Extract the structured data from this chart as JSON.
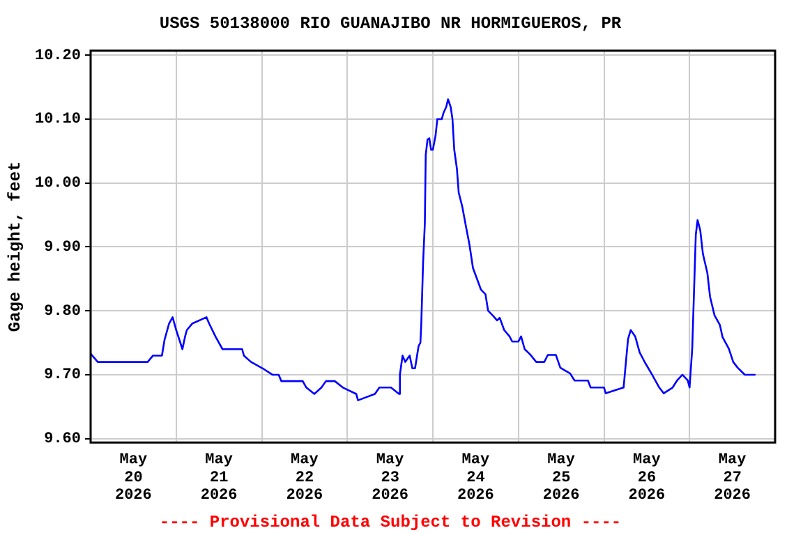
{
  "chart_data": {
    "type": "line",
    "title": "USGS 50138000 RIO GUANAJIBO NR HORMIGUEROS, PR",
    "ylabel": "Gage height, feet",
    "annotations": [
      "---- Provisional Data Subject to Revision ----"
    ],
    "x": [
      "2026-05-20T00:00",
      "2026-05-20T02:00",
      "2026-05-20T16:00",
      "2026-05-20T17:30",
      "2026-05-20T20:00",
      "2026-05-20T20:45",
      "2026-05-20T22:00",
      "2026-05-20T23:00",
      "2026-05-21T00:00",
      "2026-05-21T01:45",
      "2026-05-21T02:30",
      "2026-05-21T03:00",
      "2026-05-21T04:30",
      "2026-05-21T08:30",
      "2026-05-21T09:15",
      "2026-05-21T11:00",
      "2026-05-21T13:00",
      "2026-05-21T18:30",
      "2026-05-21T19:00",
      "2026-05-21T21:00",
      "2026-05-22T00:15",
      "2026-05-22T03:00",
      "2026-05-22T04:45",
      "2026-05-22T05:30",
      "2026-05-22T11:30",
      "2026-05-22T12:30",
      "2026-05-22T14:45",
      "2026-05-22T16:45",
      "2026-05-22T18:00",
      "2026-05-22T20:30",
      "2026-05-22T22:45",
      "2026-05-23T02:30",
      "2026-05-23T03:00",
      "2026-05-23T07:45",
      "2026-05-23T09:00",
      "2026-05-23T12:15",
      "2026-05-23T14:30",
      "2026-05-23T14:45",
      "2026-05-23T15:30",
      "2026-05-23T16:15",
      "2026-05-23T17:30",
      "2026-05-23T18:15",
      "2026-05-23T19:00",
      "2026-05-23T20:00",
      "2026-05-23T20:30",
      "2026-05-23T20:45",
      "2026-05-23T21:15",
      "2026-05-23T21:45",
      "2026-05-23T22:00",
      "2026-05-23T22:30",
      "2026-05-23T23:00",
      "2026-05-23T23:30",
      "2026-05-24T00:00",
      "2026-05-24T00:45",
      "2026-05-24T01:15",
      "2026-05-24T02:30",
      "2026-05-24T03:00",
      "2026-05-24T03:45",
      "2026-05-24T04:15",
      "2026-05-24T05:00",
      "2026-05-24T05:30",
      "2026-05-24T06:00",
      "2026-05-24T06:45",
      "2026-05-24T07:15",
      "2026-05-24T08:15",
      "2026-05-24T09:15",
      "2026-05-24T10:15",
      "2026-05-24T11:15",
      "2026-05-24T12:15",
      "2026-05-24T13:30",
      "2026-05-24T14:45",
      "2026-05-24T15:30",
      "2026-05-24T16:45",
      "2026-05-24T18:00",
      "2026-05-24T18:45",
      "2026-05-24T20:00",
      "2026-05-24T21:30",
      "2026-05-24T22:15",
      "2026-05-25T00:00",
      "2026-05-25T00:45",
      "2026-05-25T01:45",
      "2026-05-25T03:15",
      "2026-05-25T05:00",
      "2026-05-25T07:15",
      "2026-05-25T08:15",
      "2026-05-25T10:30",
      "2026-05-25T11:45",
      "2026-05-25T14:30",
      "2026-05-25T15:45",
      "2026-05-25T19:30",
      "2026-05-25T20:15",
      "2026-05-26T00:00",
      "2026-05-26T00:30",
      "2026-05-26T05:30",
      "2026-05-26T06:15",
      "2026-05-26T06:45",
      "2026-05-26T07:30",
      "2026-05-26T08:45",
      "2026-05-26T10:00",
      "2026-05-26T11:30",
      "2026-05-26T13:30",
      "2026-05-26T15:30",
      "2026-05-26T16:45",
      "2026-05-26T19:15",
      "2026-05-26T20:30",
      "2026-05-26T22:00",
      "2026-05-26T23:30",
      "2026-05-27T00:00",
      "2026-05-27T00:45",
      "2026-05-27T01:30",
      "2026-05-27T01:45",
      "2026-05-27T02:15",
      "2026-05-27T03:00",
      "2026-05-27T03:45",
      "2026-05-27T05:00",
      "2026-05-27T05:45",
      "2026-05-27T07:00",
      "2026-05-27T08:30",
      "2026-05-27T09:15",
      "2026-05-27T11:00",
      "2026-05-27T12:15",
      "2026-05-27T13:30",
      "2026-05-27T15:30",
      "2026-05-27T18:30"
    ],
    "series": [
      {
        "color": "#0000ff",
        "values": [
          9.733,
          9.72,
          9.72,
          9.73,
          9.73,
          9.755,
          9.78,
          9.79,
          9.77,
          9.74,
          9.76,
          9.77,
          9.78,
          9.79,
          9.78,
          9.76,
          9.74,
          9.74,
          9.73,
          9.72,
          9.71,
          9.7,
          9.7,
          9.69,
          9.69,
          9.68,
          9.67,
          9.68,
          9.69,
          9.69,
          9.68,
          9.67,
          9.66,
          9.67,
          9.68,
          9.68,
          9.67,
          9.7,
          9.73,
          9.72,
          9.73,
          9.71,
          9.71,
          9.745,
          9.75,
          9.78,
          9.874,
          9.937,
          10.044,
          10.068,
          10.07,
          10.052,
          10.052,
          10.074,
          10.1,
          10.1,
          10.11,
          10.119,
          10.131,
          10.119,
          10.1,
          10.052,
          10.022,
          9.985,
          9.963,
          9.933,
          9.904,
          9.867,
          9.852,
          9.833,
          9.826,
          9.8,
          9.793,
          9.785,
          9.789,
          9.77,
          9.76,
          9.752,
          9.752,
          9.76,
          9.74,
          9.732,
          9.72,
          9.72,
          9.731,
          9.731,
          9.711,
          9.702,
          9.691,
          9.691,
          9.68,
          9.68,
          9.671,
          9.68,
          9.726,
          9.756,
          9.77,
          9.76,
          9.735,
          9.719,
          9.7,
          9.68,
          9.671,
          9.68,
          9.691,
          9.7,
          9.691,
          9.68,
          9.741,
          9.874,
          9.919,
          9.942,
          9.926,
          9.889,
          9.859,
          9.822,
          9.793,
          9.778,
          9.759,
          9.741,
          9.72,
          9.711,
          9.7,
          9.7
        ]
      }
    ],
    "xlim": [
      "2026-05-20T00:00",
      "2026-05-28T00:00"
    ],
    "xticks": [
      {
        "value": "2026-05-20T00:00",
        "label": null
      },
      {
        "value": "2026-05-20T12:00",
        "label": "May\n20\n2026"
      },
      {
        "value": "2026-05-21T00:00",
        "label": null
      },
      {
        "value": "2026-05-21T12:00",
        "label": "May\n21\n2026"
      },
      {
        "value": "2026-05-22T00:00",
        "label": null
      },
      {
        "value": "2026-05-22T12:00",
        "label": "May\n22\n2026"
      },
      {
        "value": "2026-05-23T00:00",
        "label": null
      },
      {
        "value": "2026-05-23T12:00",
        "label": "May\n23\n2026"
      },
      {
        "value": "2026-05-24T00:00",
        "label": null
      },
      {
        "value": "2026-05-24T12:00",
        "label": "May\n24\n2026"
      },
      {
        "value": "2026-05-25T00:00",
        "label": null
      },
      {
        "value": "2026-05-25T12:00",
        "label": "May\n25\n2026"
      },
      {
        "value": "2026-05-26T00:00",
        "label": null
      },
      {
        "value": "2026-05-26T12:00",
        "label": "May\n26\n2026"
      },
      {
        "value": "2026-05-27T00:00",
        "label": null
      },
      {
        "value": "2026-05-27T12:00",
        "label": "May\n27\n2026"
      },
      {
        "value": "2026-05-28T00:00",
        "label": null
      }
    ],
    "ylim": [
      9.594,
      10.207
    ],
    "yticks": [
      {
        "value": 9.6,
        "label": "9.60"
      },
      {
        "value": 9.7,
        "label": "9.70"
      },
      {
        "value": 9.8,
        "label": "9.80"
      },
      {
        "value": 9.9,
        "label": "9.90"
      },
      {
        "value": 10.0,
        "label": "10.00"
      },
      {
        "value": 10.1,
        "label": "10.10"
      },
      {
        "value": 10.2,
        "label": "10.20"
      }
    ],
    "grid": true,
    "legend": false,
    "marker": "none",
    "line_style": "solid"
  }
}
